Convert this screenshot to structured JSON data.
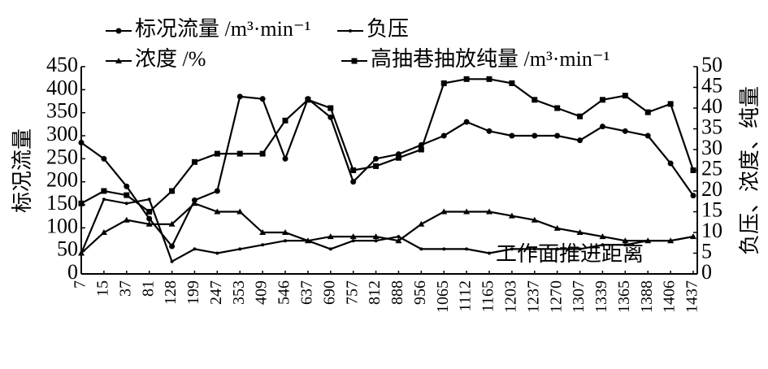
{
  "chart_data": {
    "type": "line",
    "categories": [
      "7",
      "15",
      "37",
      "81",
      "128",
      "199",
      "247",
      "353",
      "409",
      "546",
      "637",
      "690",
      "757",
      "812",
      "888",
      "956",
      "1065",
      "1112",
      "1165",
      "1203",
      "1237",
      "1270",
      "1307",
      "1339",
      "1365",
      "1388",
      "1406",
      "1437"
    ],
    "series": [
      {
        "name": "标况流量 /m³·min⁻¹",
        "color": "#000000",
        "marker": "circle",
        "axis": "y",
        "values": [
          285,
          250,
          190,
          120,
          60,
          160,
          180,
          385,
          380,
          250,
          380,
          340,
          200,
          250,
          260,
          280,
          300,
          330,
          310,
          300,
          300,
          300,
          290,
          320,
          310,
          300,
          240,
          170
        ]
      },
      {
        "name": "负压",
        "color": "#000000",
        "marker": "dot",
        "axis": "y2",
        "values": [
          5,
          18,
          17,
          18,
          3,
          6,
          5,
          6,
          7,
          8,
          8,
          6,
          8,
          8,
          9,
          6,
          6,
          6,
          5,
          6,
          6,
          6,
          6,
          7,
          7,
          8,
          8,
          9
        ]
      },
      {
        "name": "浓度 /%",
        "color": "#000000",
        "marker": "triangle",
        "axis": "y2",
        "values": [
          5,
          10,
          13,
          12,
          12,
          17,
          15,
          15,
          10,
          10,
          8,
          9,
          9,
          9,
          8,
          12,
          15,
          15,
          15,
          14,
          13,
          11,
          10,
          9,
          8,
          8,
          8,
          9
        ]
      },
      {
        "name": "高抽巷抽放纯量 /m³·min⁻¹",
        "color": "#000000",
        "marker": "square",
        "axis": "y2",
        "values": [
          17,
          20,
          19,
          15,
          20,
          27,
          29,
          29,
          29,
          37,
          42,
          40,
          25,
          26,
          28,
          30,
          46,
          47,
          47,
          46,
          42,
          40,
          38,
          42,
          43,
          39,
          41,
          25
        ]
      }
    ],
    "ylabel": "标况流量",
    "y2label": "负压、浓度、纯量",
    "annotation": "工作面推进距离",
    "ylim": [
      0,
      450
    ],
    "yticks": [
      0,
      50,
      100,
      150,
      200,
      250,
      300,
      350,
      400,
      450
    ],
    "y2lim": [
      0,
      50
    ],
    "y2ticks": [
      0,
      5,
      10,
      15,
      20,
      25,
      30,
      35,
      40,
      45,
      50
    ]
  }
}
